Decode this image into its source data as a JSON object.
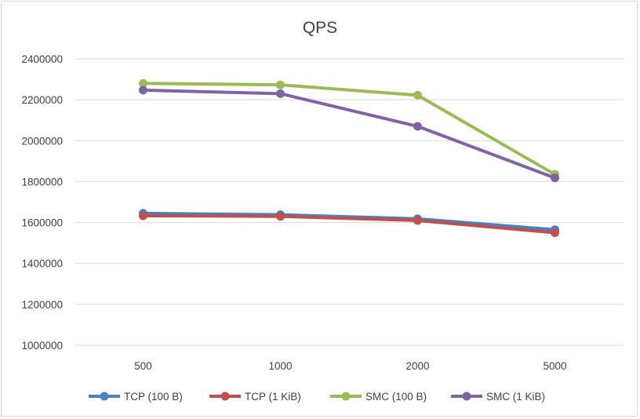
{
  "chart_data": {
    "type": "line",
    "title": "QPS",
    "xlabel": "",
    "ylabel": "",
    "categories": [
      "500",
      "1000",
      "2000",
      "5000"
    ],
    "ylim": [
      1000000,
      2400000
    ],
    "yticks": [
      "1000000",
      "1200000",
      "1400000",
      "1600000",
      "1800000",
      "2000000",
      "2200000",
      "2400000"
    ],
    "grid": true,
    "legend_position": "bottom",
    "series": [
      {
        "name": "TCP (100 B)",
        "color": "#4a7fc1",
        "values": [
          1645000,
          1638000,
          1618000,
          1565000
        ]
      },
      {
        "name": "TCP (1 KiB)",
        "color": "#c0504d",
        "values": [
          1633000,
          1630000,
          1610000,
          1550000
        ]
      },
      {
        "name": "SMC (100 B)",
        "color": "#9bbb59",
        "values": [
          2280000,
          2273000,
          2222000,
          1835000
        ]
      },
      {
        "name": "SMC (1 KiB)",
        "color": "#8064a2",
        "values": [
          2247000,
          2230000,
          2070000,
          1818000
        ]
      }
    ]
  }
}
